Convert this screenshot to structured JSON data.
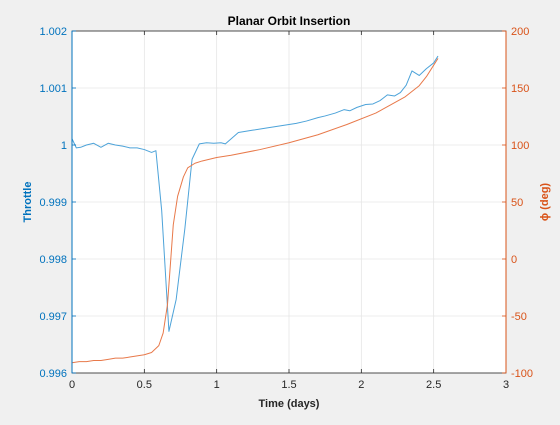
{
  "chart_data": {
    "type": "line",
    "title": "Planar Orbit Insertion",
    "xlabel": "Time (days)",
    "ylabel_left": "Throttle",
    "ylabel_right": "ϕ (deg)",
    "xlim": [
      0,
      3
    ],
    "ylim_left": [
      0.996,
      1.002
    ],
    "ylim_right": [
      -100,
      200
    ],
    "grid": true,
    "legend": "none",
    "x_ticks": [
      "0",
      "0.5",
      "1",
      "1.5",
      "2",
      "2.5",
      "3"
    ],
    "y_ticks_left": [
      "0.996",
      "0.997",
      "0.998",
      "0.999",
      "1",
      "1.001",
      "1.002"
    ],
    "y_ticks_right": [
      "-100",
      "-50",
      "0",
      "50",
      "100",
      "150",
      "200"
    ],
    "colors": {
      "left_axis": "#0072BD",
      "right_axis": "#D95319",
      "left_series": "#4DA3D9",
      "right_series": "#E8794A",
      "axes_bg": "#ffffff",
      "figure_bg": "#f0f0f0",
      "grid": "#e6e6e6",
      "frame": "#262626"
    },
    "series": [
      {
        "axis": "left",
        "color": "#4DA3D9",
        "x": [
          0,
          0.03,
          0.06,
          0.1,
          0.15,
          0.2,
          0.25,
          0.3,
          0.35,
          0.4,
          0.45,
          0.5,
          0.55,
          0.58,
          0.62,
          0.67,
          0.72,
          0.78,
          0.83,
          0.88,
          0.93,
          0.98,
          1.03,
          1.06,
          1.15,
          1.25,
          1.35,
          1.45,
          1.55,
          1.62,
          1.7,
          1.75,
          1.82,
          1.88,
          1.92,
          1.97,
          2.03,
          2.08,
          2.13,
          2.18,
          2.23,
          2.27,
          2.31,
          2.35,
          2.4,
          2.45,
          2.5,
          2.53
        ],
        "y": [
          1.00011,
          0.99995,
          0.99996,
          1.0,
          1.00003,
          0.99996,
          1.00003,
          1.0,
          0.99998,
          0.99995,
          0.99995,
          0.99992,
          0.99987,
          0.9999,
          0.99885,
          0.99673,
          0.99729,
          0.99853,
          0.99975,
          1.00002,
          1.00004,
          1.00003,
          1.00004,
          1.00002,
          1.00022,
          1.00026,
          1.0003,
          1.00034,
          1.00038,
          1.00042,
          1.00048,
          1.00051,
          1.00056,
          1.00062,
          1.0006,
          1.00066,
          1.00071,
          1.00072,
          1.00078,
          1.00088,
          1.00086,
          1.00092,
          1.00105,
          1.0013,
          1.00122,
          1.00134,
          1.00144,
          1.00156
        ]
      },
      {
        "axis": "right",
        "color": "#E8794A",
        "x": [
          0,
          0.05,
          0.1,
          0.15,
          0.2,
          0.25,
          0.3,
          0.35,
          0.4,
          0.45,
          0.5,
          0.55,
          0.6,
          0.63,
          0.66,
          0.68,
          0.7,
          0.73,
          0.77,
          0.8,
          0.85,
          0.9,
          1.0,
          1.1,
          1.3,
          1.5,
          1.7,
          1.9,
          2.1,
          2.2,
          2.3,
          2.4,
          2.45,
          2.5,
          2.53
        ],
        "y": [
          -91,
          -90,
          -90,
          -89,
          -89,
          -88,
          -87,
          -87,
          -86,
          -85,
          -84,
          -82,
          -76,
          -65,
          -40,
          -5,
          30,
          55,
          72,
          80,
          84,
          86,
          89,
          91,
          96,
          102,
          109,
          118,
          128,
          135,
          142,
          152,
          160,
          170,
          176
        ]
      }
    ]
  }
}
